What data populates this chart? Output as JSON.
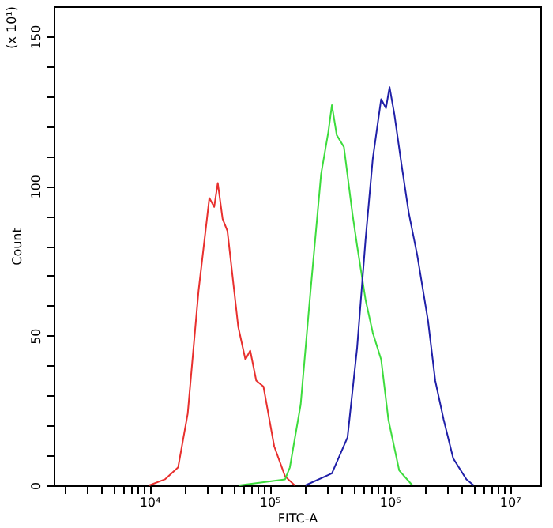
{
  "chart_data": {
    "type": "line",
    "xlabel": "FITC-A",
    "ylabel": "Count",
    "annotations": [
      "(x 10¹)"
    ],
    "log": "x",
    "grid": false,
    "legend": false,
    "xlim": [
      1600,
      18000000
    ],
    "ylim": [
      0,
      160
    ],
    "xticks": [
      {
        "value": 2000,
        "label": null
      },
      {
        "value": 3000,
        "label": null
      },
      {
        "value": 4000,
        "label": null
      },
      {
        "value": 5000,
        "label": null
      },
      {
        "value": 6000,
        "label": null
      },
      {
        "value": 7000,
        "label": null
      },
      {
        "value": 8000,
        "label": null
      },
      {
        "value": 9000,
        "label": null
      },
      {
        "value": 10000,
        "label": "10⁴"
      },
      {
        "value": 20000,
        "label": null
      },
      {
        "value": 30000,
        "label": null
      },
      {
        "value": 40000,
        "label": null
      },
      {
        "value": 50000,
        "label": null
      },
      {
        "value": 60000,
        "label": null
      },
      {
        "value": 70000,
        "label": null
      },
      {
        "value": 80000,
        "label": null
      },
      {
        "value": 90000,
        "label": null
      },
      {
        "value": 100000,
        "label": "10⁵"
      },
      {
        "value": 200000,
        "label": null
      },
      {
        "value": 300000,
        "label": null
      },
      {
        "value": 400000,
        "label": null
      },
      {
        "value": 500000,
        "label": null
      },
      {
        "value": 600000,
        "label": null
      },
      {
        "value": 700000,
        "label": null
      },
      {
        "value": 800000,
        "label": null
      },
      {
        "value": 900000,
        "label": null
      },
      {
        "value": 1000000,
        "label": "10⁶"
      },
      {
        "value": 2000000,
        "label": null
      },
      {
        "value": 3000000,
        "label": null
      },
      {
        "value": 4000000,
        "label": null
      },
      {
        "value": 5000000,
        "label": null
      },
      {
        "value": 6000000,
        "label": null
      },
      {
        "value": 7000000,
        "label": null
      },
      {
        "value": 8000000,
        "label": null
      },
      {
        "value": 9000000,
        "label": null
      },
      {
        "value": 10000000,
        "label": "10⁷"
      }
    ],
    "yticks": [
      0,
      {
        "value": 10,
        "label": null
      },
      {
        "value": 20,
        "label": null
      },
      {
        "value": 30,
        "label": null
      },
      {
        "value": 40,
        "label": null
      },
      50,
      {
        "value": 60,
        "label": null
      },
      {
        "value": 70,
        "label": null
      },
      {
        "value": 80,
        "label": null
      },
      {
        "value": 90,
        "label": null
      },
      100,
      {
        "value": 110,
        "label": null
      },
      {
        "value": 120,
        "label": null
      },
      {
        "value": 130,
        "label": null
      },
      {
        "value": 140,
        "label": null
      },
      150
    ],
    "series": [
      {
        "color": "#e8302e",
        "x": [
          10000,
          13490,
          17380,
          20890,
          25700,
          31620,
          34670,
          37150,
          40740,
          44670,
          46770,
          54950,
          63100,
          69180,
          77620,
          89130,
          109600,
          134900,
          162200
        ],
        "values": [
          0,
          2,
          6,
          24,
          65,
          96,
          93,
          101,
          89,
          85,
          78,
          53,
          42,
          45,
          35,
          33,
          13,
          3,
          0
        ]
      },
      {
        "color": "#3ddc3d",
        "x": [
          56230,
          134900,
          147900,
          182000,
          218800,
          269200,
          309000,
          331100,
          363100,
          416900,
          489800,
          537000,
          631000,
          724400,
          851100,
          977200,
          1202000,
          1549000
        ],
        "values": [
          0,
          2,
          6,
          27,
          64,
          104,
          118,
          127,
          117,
          113,
          91,
          80,
          62,
          51,
          42,
          22,
          5,
          0
        ]
      },
      {
        "color": "#2020a8",
        "x": [
          199500,
          331100,
          446700,
          537000,
          631000,
          724400,
          851100,
          933300,
          1000000,
          1096000,
          1259000,
          1445000,
          1698000,
          2089000,
          2399000,
          2818000,
          3388000,
          4365000,
          5012000
        ],
        "values": [
          0,
          4,
          16,
          46,
          82,
          109,
          129,
          126,
          133,
          124,
          107,
          91,
          77,
          55,
          35,
          22,
          9,
          2,
          0
        ]
      }
    ]
  }
}
